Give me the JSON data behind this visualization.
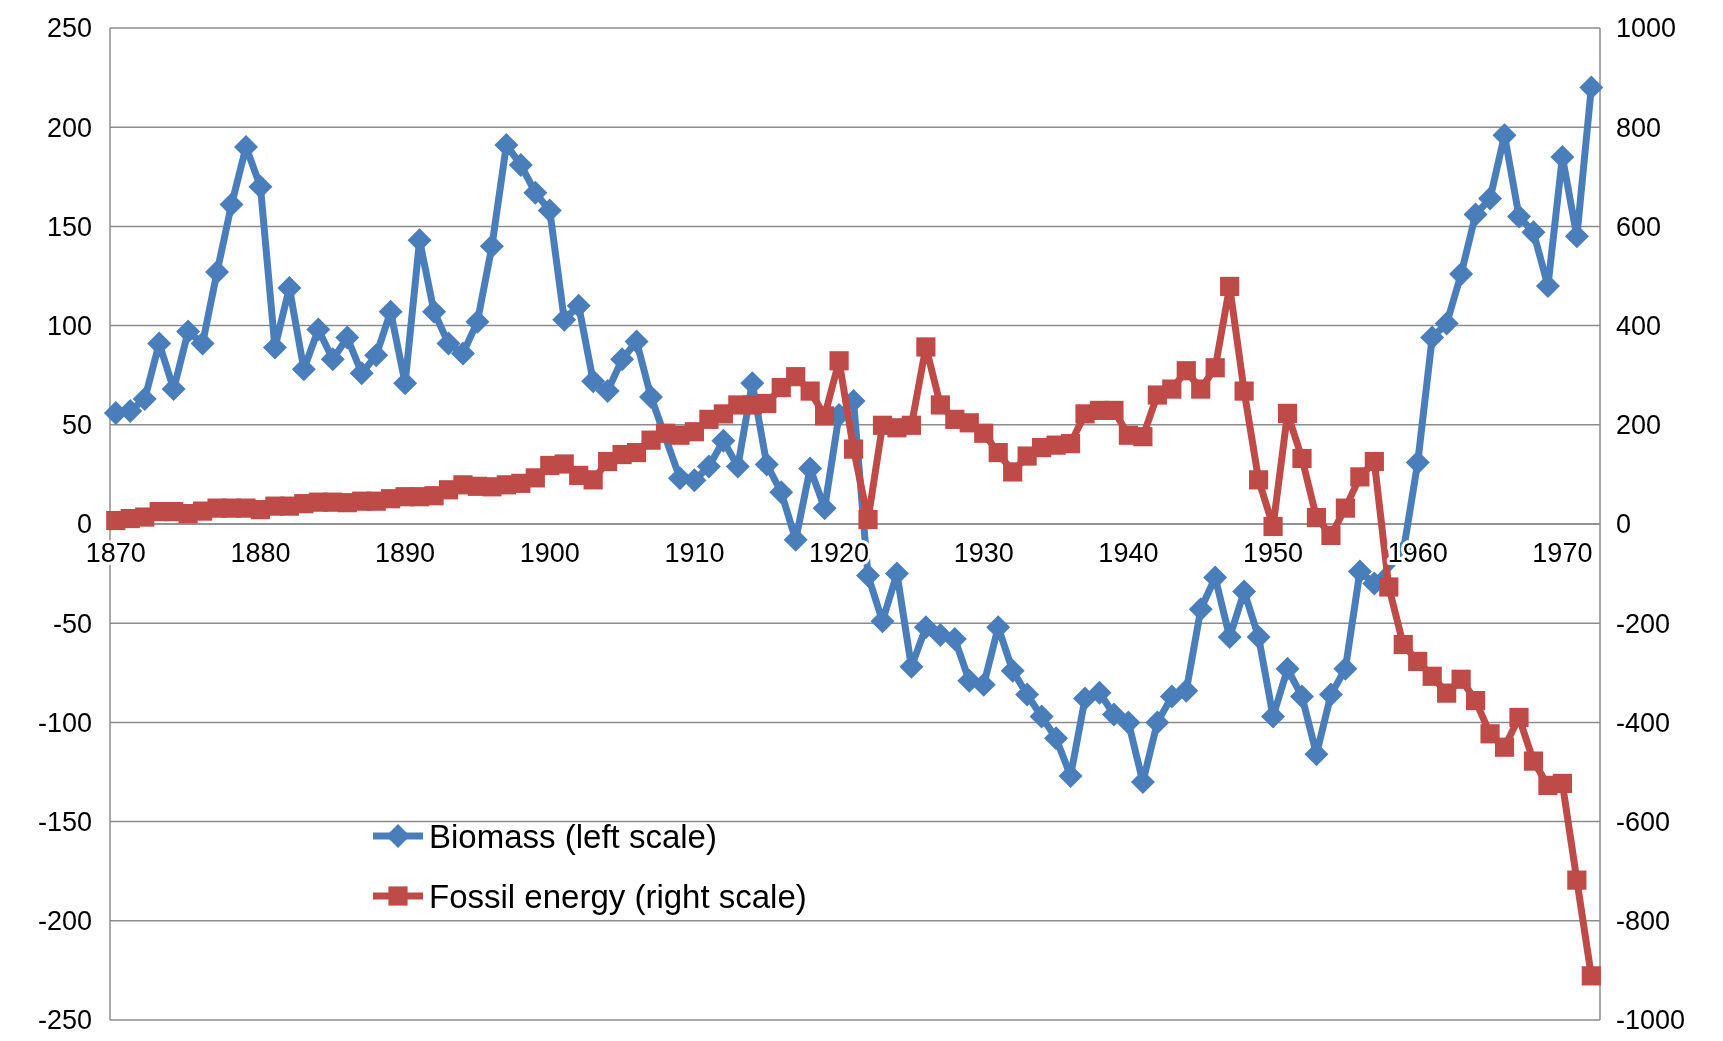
{
  "chart_data": {
    "type": "line",
    "x": [
      1870,
      1871,
      1872,
      1873,
      1874,
      1875,
      1876,
      1877,
      1878,
      1879,
      1880,
      1881,
      1882,
      1883,
      1884,
      1885,
      1886,
      1887,
      1888,
      1889,
      1890,
      1891,
      1892,
      1893,
      1894,
      1895,
      1896,
      1897,
      1898,
      1899,
      1900,
      1901,
      1902,
      1903,
      1904,
      1905,
      1906,
      1907,
      1908,
      1909,
      1910,
      1911,
      1912,
      1913,
      1914,
      1915,
      1916,
      1917,
      1918,
      1919,
      1920,
      1921,
      1922,
      1923,
      1924,
      1925,
      1926,
      1927,
      1928,
      1929,
      1930,
      1931,
      1932,
      1933,
      1934,
      1935,
      1936,
      1937,
      1938,
      1939,
      1940,
      1941,
      1942,
      1943,
      1944,
      1945,
      1946,
      1947,
      1948,
      1949,
      1950,
      1951,
      1952,
      1953,
      1954,
      1955,
      1956,
      1957,
      1958,
      1959,
      1960,
      1961,
      1962,
      1963,
      1964,
      1965,
      1966,
      1967,
      1968,
      1969,
      1970,
      1971,
      1972
    ],
    "xlim": [
      1869.6,
      1972.6
    ],
    "xticks": [
      1870,
      1880,
      1890,
      1900,
      1910,
      1920,
      1930,
      1940,
      1950,
      1960,
      1970
    ],
    "ylim": [
      -250,
      250
    ],
    "yticks": [
      -250,
      -200,
      -150,
      -100,
      -50,
      0,
      50,
      100,
      150,
      200,
      250
    ],
    "y2lim": [
      -1000,
      1000
    ],
    "y2ticks": [
      -1000,
      -800,
      -600,
      -400,
      -200,
      0,
      200,
      400,
      600,
      800,
      1000
    ],
    "grid": "y",
    "legend": "bottom left",
    "line_style": "solid",
    "series": [
      {
        "name": "Biomass (left scale)",
        "color": "#4a7ebb",
        "marker": "diamond",
        "axis": "y",
        "values": [
          56,
          57,
          63,
          91,
          68,
          97,
          91,
          127,
          161,
          190,
          170,
          89,
          119,
          78,
          98,
          83,
          94,
          76,
          85,
          107,
          71,
          143,
          107,
          91,
          86,
          102,
          140,
          191,
          181,
          167,
          158,
          103,
          110,
          72,
          67,
          83,
          92,
          64,
          null,
          23,
          22,
          29,
          42,
          29,
          71,
          30,
          16,
          -8,
          28,
          8,
          55,
          62,
          -26,
          -49,
          -25,
          -72,
          -52,
          -56,
          -58,
          -79,
          -81,
          -52,
          -74,
          -86,
          -97,
          -108,
          -127,
          -88,
          -85,
          -96,
          -100,
          -130,
          -100,
          -87,
          -84,
          -43,
          -27,
          -57,
          -34,
          -57,
          -97,
          -73,
          -87,
          -116,
          -86,
          -73,
          -24,
          -30,
          null,
          -14,
          31,
          94,
          101,
          126,
          156,
          164,
          196,
          155,
          147,
          120,
          185,
          145,
          220
        ]
      },
      {
        "name": "Fossil energy (right scale)",
        "color": "#be4b48",
        "marker": "square",
        "axis": "y2",
        "values": [
          7,
          11,
          14,
          25,
          25,
          21,
          26,
          32,
          32,
          32,
          29,
          36,
          36,
          41,
          44,
          44,
          43,
          46,
          46,
          51,
          55,
          55,
          57,
          69,
          79,
          76,
          75,
          79,
          82,
          93,
          118,
          121,
          98,
          89,
          126,
          140,
          144,
          169,
          183,
          179,
          186,
          211,
          222,
          240,
          240,
          243,
          275,
          297,
          268,
          218,
          329,
          151,
          9,
          199,
          194,
          199,
          357,
          240,
          211,
          204,
          183,
          144,
          105,
          137,
          154,
          159,
          162,
          222,
          229,
          229,
          179,
          176,
          260,
          272,
          309,
          272,
          315,
          479,
          268,
          89,
          -5,
          223,
          132,
          13,
          -23,
          32,
          95,
          126,
          -127,
          -243,
          -277,
          -307,
          -341,
          -313,
          -356,
          -423,
          -450,
          -390,
          -478,
          -527,
          -523,
          -718,
          -911
        ]
      }
    ]
  }
}
